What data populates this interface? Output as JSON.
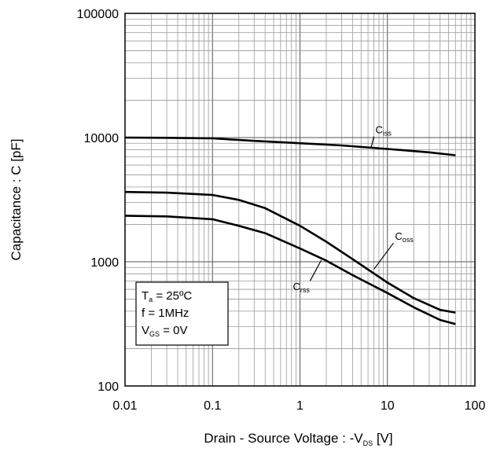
{
  "chart_data": {
    "type": "line",
    "title": "",
    "xlabel": {
      "main": "Drain - Source Voltage : -V",
      "sub": "DS",
      "tail": " [V]"
    },
    "ylabel": "Capacitance : C [pF]",
    "xscale": "log",
    "yscale": "log",
    "xlim": [
      0.01,
      100
    ],
    "ylim": [
      100,
      100000
    ],
    "grid": true,
    "x_ticks": [
      "0.01",
      "0.1",
      "1",
      "10",
      "100"
    ],
    "y_ticks": [
      "100",
      "1000",
      "10000",
      "100000"
    ],
    "legend_box": {
      "placement": "lower-left",
      "lines": [
        {
          "main": "T",
          "sub": "a",
          "tail": " = 25ºC"
        },
        {
          "main": "f = 1MHz",
          "sub": "",
          "tail": ""
        },
        {
          "main": "V",
          "sub": "GS",
          "tail": " = 0V"
        }
      ]
    },
    "series": [
      {
        "name": "C",
        "sub": "iss",
        "x": [
          0.01,
          0.03,
          0.1,
          0.3,
          1,
          3,
          10,
          30,
          60
        ],
        "y": [
          10000,
          9950,
          9850,
          9400,
          9000,
          8650,
          8100,
          7600,
          7200
        ]
      },
      {
        "name": "C",
        "sub": "oss",
        "x": [
          0.01,
          0.03,
          0.1,
          0.2,
          0.4,
          1,
          2,
          4,
          10,
          20,
          40,
          60
        ],
        "y": [
          3650,
          3600,
          3450,
          3150,
          2700,
          1950,
          1450,
          1050,
          680,
          510,
          410,
          390
        ]
      },
      {
        "name": "C",
        "sub": "rss",
        "x": [
          0.01,
          0.03,
          0.1,
          0.2,
          0.4,
          1,
          2,
          4,
          10,
          20,
          40,
          60
        ],
        "y": [
          2350,
          2320,
          2200,
          1950,
          1700,
          1280,
          1020,
          780,
          560,
          430,
          340,
          315
        ]
      }
    ],
    "annotations": [
      {
        "series": 0,
        "text_x": 7.3,
        "text_y": 10800,
        "end_x": 6.5,
        "end_y": 8300
      },
      {
        "series": 1,
        "text_x": 12.2,
        "text_y": 1500,
        "end_x": 7.0,
        "end_y": 870
      },
      {
        "series": 2,
        "text_x": 0.83,
        "text_y": 590,
        "end_x": 1.75,
        "end_y": 1030
      }
    ]
  }
}
